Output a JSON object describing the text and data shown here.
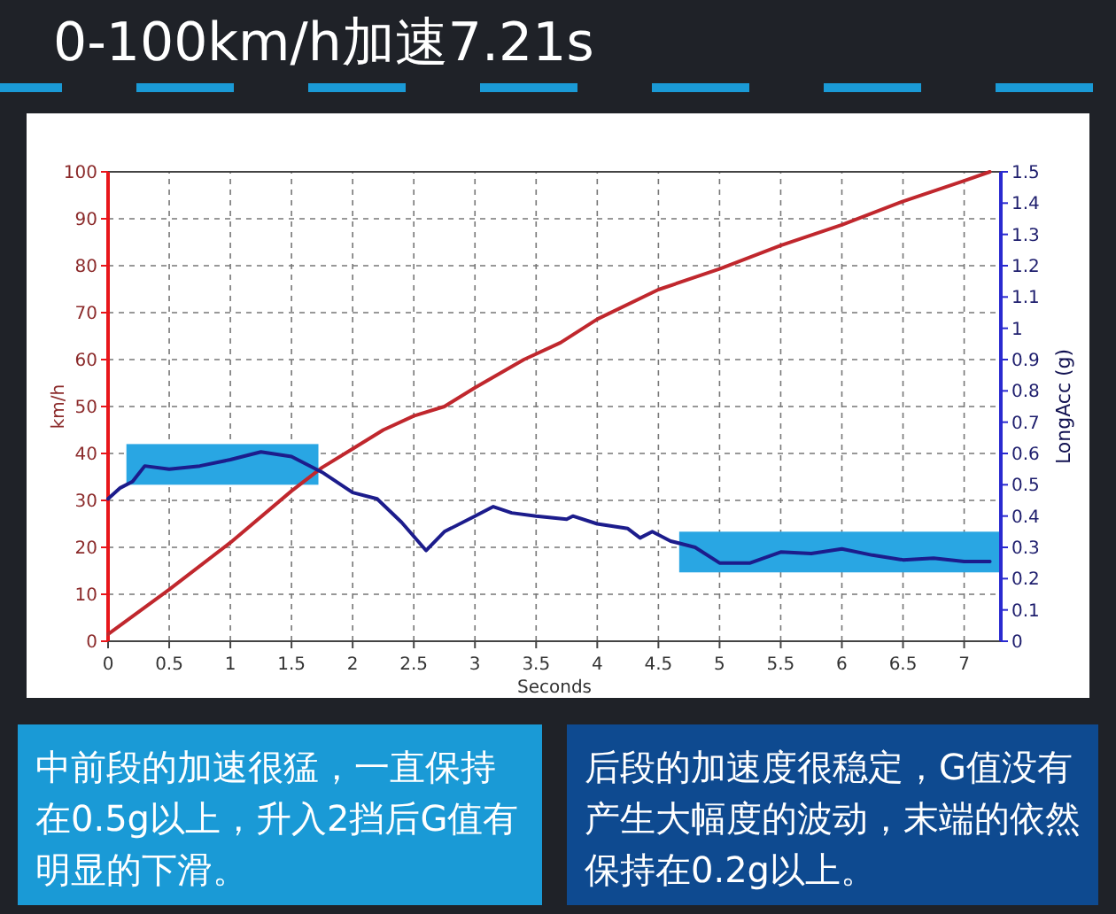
{
  "chart_data": {
    "type": "line",
    "title": "0-100km/h加速7.21s",
    "xlabel": "Seconds",
    "ylabel": "km/h",
    "y2label": "LongAcc (g)",
    "xlim": [
      0,
      7.3
    ],
    "xticks": [
      0,
      0.5,
      1,
      1.5,
      2,
      2.5,
      3,
      3.5,
      4,
      4.5,
      5,
      5.5,
      6,
      6.5,
      7
    ],
    "ylim": [
      0,
      100
    ],
    "yticks": [
      0,
      10,
      20,
      30,
      40,
      50,
      60,
      70,
      80,
      90,
      100
    ],
    "y2lim": [
      0,
      1.5
    ],
    "y2ticks": [
      0,
      0.1,
      0.2,
      0.3,
      0.4,
      0.5,
      0.6,
      0.7,
      0.8,
      0.9,
      1,
      1.1,
      1.2,
      1.3,
      1.4,
      1.5
    ],
    "grid": true,
    "line_style": "solid",
    "marker": "none",
    "series": [
      {
        "color": "#c0272d",
        "x": [
          0,
          0.5,
          1,
          1.5,
          1.75,
          2,
          2.25,
          2.5,
          2.75,
          3,
          3.4,
          3.7,
          4,
          4.5,
          5,
          5.5,
          6,
          6.5,
          7,
          7.21
        ],
        "values": [
          1.5,
          11,
          21,
          32,
          37,
          41,
          45,
          48,
          50,
          54,
          60,
          63.6,
          68.6,
          74.9,
          79.3,
          84.3,
          88.7,
          93.7,
          98.1,
          100
        ]
      },
      {
        "color": "#1c1c8c",
        "axis": "y2",
        "x": [
          0,
          0.1,
          0.2,
          0.3,
          0.5,
          0.75,
          1,
          1.25,
          1.5,
          1.75,
          2,
          2.2,
          2.4,
          2.6,
          2.75,
          3,
          3.15,
          3.3,
          3.5,
          3.75,
          3.8,
          4,
          4.25,
          4.35,
          4.45,
          4.6,
          4.8,
          5,
          5.25,
          5.5,
          5.75,
          6,
          6.25,
          6.5,
          6.75,
          7,
          7.21
        ],
        "values": [
          0.455,
          0.49,
          0.51,
          0.56,
          0.55,
          0.56,
          0.58,
          0.605,
          0.59,
          0.54,
          0.475,
          0.455,
          0.38,
          0.29,
          0.35,
          0.4,
          0.43,
          0.41,
          0.4,
          0.39,
          0.4,
          0.375,
          0.36,
          0.33,
          0.35,
          0.32,
          0.3,
          0.25,
          0.25,
          0.285,
          0.28,
          0.295,
          0.275,
          0.26,
          0.265,
          0.255,
          0.255
        ]
      }
    ],
    "annotations": [
      "中前段的加速很猛，一直保持在0.5g以上，升入2挡后G值有明显的下滑。",
      "后段的加速度很稳定，G值没有产生大幅度的波动，末端的依然保持在0.2g以上。"
    ]
  }
}
